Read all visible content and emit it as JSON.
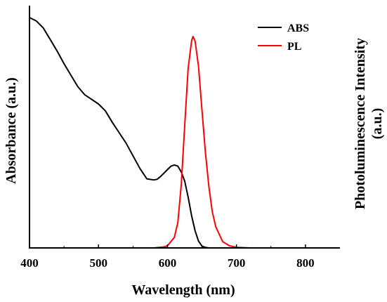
{
  "chart_data": {
    "type": "line",
    "xlabel": "Wavelength (nm)",
    "ylabel_left": "Absorbance (a.u.)",
    "ylabel_right": [
      "Photoluminescence Intensity",
      "(a.u.)"
    ],
    "xlim": [
      400,
      850
    ],
    "x_ticks": [
      400,
      500,
      600,
      700,
      800
    ],
    "y_ticks_labeled": false,
    "grid": false,
    "legend": {
      "position": "top-right",
      "entries": [
        "ABS",
        "PL"
      ]
    },
    "series": [
      {
        "name": "ABS",
        "color": "#000000",
        "axis": "left",
        "x": [
          400,
          410,
          420,
          430,
          440,
          450,
          460,
          470,
          480,
          490,
          500,
          510,
          520,
          530,
          540,
          550,
          560,
          570,
          580,
          585,
          590,
          595,
          600,
          605,
          610,
          615,
          620,
          625,
          630,
          635,
          640,
          645,
          650,
          655,
          660,
          680,
          700,
          750,
          800,
          850
        ],
        "y": [
          1.0,
          0.985,
          0.955,
          0.905,
          0.855,
          0.8,
          0.75,
          0.7,
          0.665,
          0.645,
          0.625,
          0.595,
          0.545,
          0.5,
          0.455,
          0.4,
          0.345,
          0.3,
          0.295,
          0.298,
          0.31,
          0.325,
          0.34,
          0.355,
          0.36,
          0.355,
          0.33,
          0.29,
          0.22,
          0.14,
          0.075,
          0.03,
          0.008,
          0.002,
          0.0,
          0.0,
          0.0,
          0.0,
          0.0,
          0.0
        ]
      },
      {
        "name": "PL",
        "color": "#ff0000",
        "axis": "right",
        "x": [
          400,
          500,
          560,
          580,
          595,
          600,
          610,
          615,
          620,
          625,
          630,
          635,
          637,
          640,
          645,
          650,
          655,
          660,
          665,
          670,
          680,
          690,
          700,
          720,
          750,
          800,
          850
        ],
        "y": [
          0.0,
          0.0,
          0.0,
          0.0,
          0.005,
          0.01,
          0.05,
          0.12,
          0.3,
          0.58,
          0.85,
          0.98,
          1.0,
          0.98,
          0.86,
          0.65,
          0.45,
          0.29,
          0.17,
          0.1,
          0.03,
          0.01,
          0.003,
          0.0,
          0.0,
          0.0,
          0.0
        ]
      }
    ]
  }
}
